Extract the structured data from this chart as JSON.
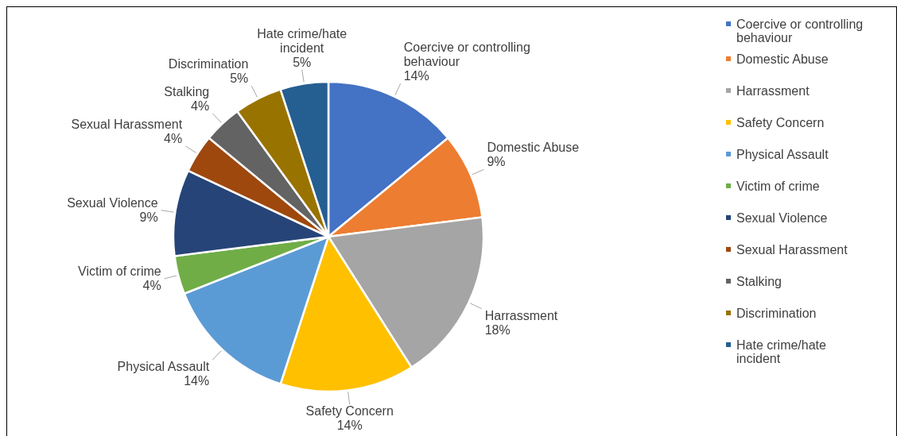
{
  "chart_data": {
    "type": "pie",
    "categories": [
      "Coercive or controlling behaviour",
      "Domestic Abuse",
      "Harrassment",
      "Safety Concern",
      "Physical Assault",
      "Victim of crime",
      "Sexual Violence",
      "Sexual Harassment",
      "Stalking",
      "Discrimination",
      "Hate crime/hate incident"
    ],
    "values": [
      14,
      9,
      18,
      14,
      14,
      4,
      9,
      4,
      4,
      5,
      5
    ],
    "colors": [
      "#4472c4",
      "#ed7d31",
      "#a5a5a5",
      "#ffc000",
      "#5b9bd5",
      "#70ad47",
      "#264478",
      "#9e480e",
      "#636363",
      "#997300",
      "#255e91"
    ],
    "value_labels": [
      "14%",
      "9%",
      "18%",
      "14%",
      "14%",
      "4%",
      "9%",
      "4%",
      "4%",
      "5%",
      "5%"
    ],
    "legend": "right"
  }
}
